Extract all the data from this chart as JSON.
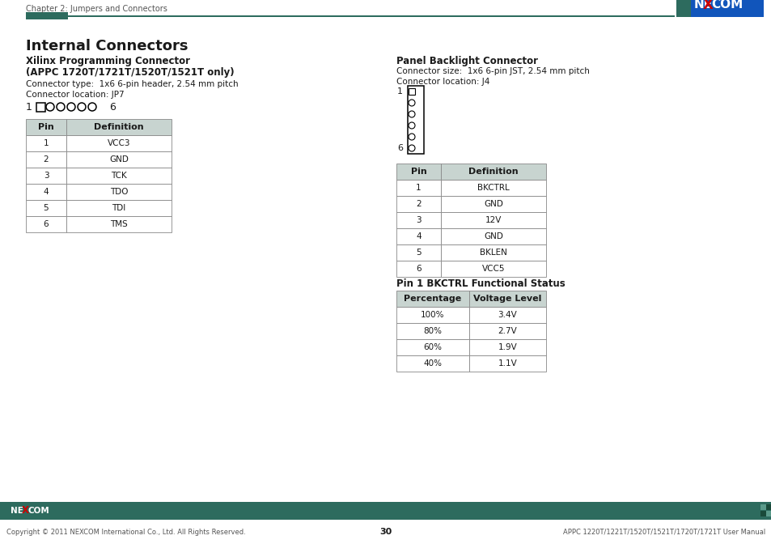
{
  "page_title": "Chapter 2: Jumpers and Connectors",
  "section_title": "Internal Connectors",
  "left_section": {
    "title_line1": "Xilinx Programming Connector",
    "title_line2": "(APPC 1720T/1721T/1520T/1521T only)",
    "info_line1": "Connector type:  1x6 6-pin header, 2.54 mm pitch",
    "info_line2": "Connector location: JP7",
    "table_headers": [
      "Pin",
      "Definition"
    ],
    "table_rows": [
      [
        "1",
        "VCC3"
      ],
      [
        "2",
        "GND"
      ],
      [
        "3",
        "TCK"
      ],
      [
        "4",
        "TDO"
      ],
      [
        "5",
        "TDI"
      ],
      [
        "6",
        "TMS"
      ]
    ]
  },
  "right_section": {
    "title": "Panel Backlight Connector",
    "info_line1": "Connector size:  1x6 6-pin JST, 2.54 mm pitch",
    "info_line2": "Connector location: J4",
    "table1_headers": [
      "Pin",
      "Definition"
    ],
    "table1_rows": [
      [
        "1",
        "BKCTRL"
      ],
      [
        "2",
        "GND"
      ],
      [
        "3",
        "12V"
      ],
      [
        "4",
        "GND"
      ],
      [
        "5",
        "BKLEN"
      ],
      [
        "6",
        "VCC5"
      ]
    ],
    "table2_title": "Pin 1 BKCTRL Functional Status",
    "table2_headers": [
      "Percentage",
      "Voltage Level"
    ],
    "table2_rows": [
      [
        "100%",
        "3.4V"
      ],
      [
        "80%",
        "2.7V"
      ],
      [
        "60%",
        "1.9V"
      ],
      [
        "40%",
        "1.1V"
      ]
    ]
  },
  "footer": {
    "copyright": "Copyright © 2011 NEXCOM International Co., Ltd. All Rights Reserved.",
    "page_number": "30",
    "manual_title": "APPC 1220T/1221T/1520T/1521T/1720T/1721T User Manual"
  },
  "colors": {
    "teal_dark": "#2D6B5E",
    "table_header_bg": "#C8D4D0",
    "text_dark": "#1a1a1a",
    "text_gray": "#555555",
    "white": "#FFFFFF",
    "red": "#CC0000",
    "blue_logo": "#1155BB",
    "footer_bar": "#2D6B5E",
    "border": "#888888"
  }
}
